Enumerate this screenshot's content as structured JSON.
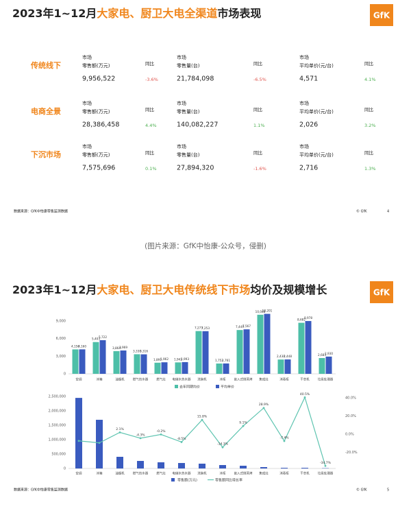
{
  "slide1": {
    "title": {
      "lead": "2023年1~12月",
      "highlight": "大家电、厨卫大电全渠道",
      "tail": "市场表现"
    },
    "logo": "GfK",
    "rows": [
      {
        "name": "传统线下",
        "metrics": [
          {
            "label": [
              "市场",
              "零售额(万元)"
            ],
            "value": "9,956,522",
            "yoy_label": "同比",
            "yoy": "-3.6%"
          },
          {
            "label": [
              "市场",
              "零售量(台)"
            ],
            "value": "21,784,098",
            "yoy_label": "同比",
            "yoy": "-6.5%"
          },
          {
            "label": [
              "市场",
              "平均单价(元/台)"
            ],
            "value": "4,571",
            "yoy_label": "同比",
            "yoy": "4.1%"
          }
        ]
      },
      {
        "name": "电商全景",
        "metrics": [
          {
            "label": [
              "市场",
              "零售额(万元)"
            ],
            "value": "28,386,458",
            "yoy_label": "同比",
            "yoy": "4.4%"
          },
          {
            "label": [
              "市场",
              "零售量(台)"
            ],
            "value": "140,082,227",
            "yoy_label": "同比",
            "yoy": "1.1%"
          },
          {
            "label": [
              "市场",
              "平均单价(元/台)"
            ],
            "value": "2,026",
            "yoy_label": "同比",
            "yoy": "3.2%"
          }
        ]
      },
      {
        "name": "下沉市场",
        "metrics": [
          {
            "label": [
              "市场",
              "零售额(万元)"
            ],
            "value": "7,575,696",
            "yoy_label": "同比",
            "yoy": "0.1%"
          },
          {
            "label": [
              "市场",
              "零售量(台)"
            ],
            "value": "27,894,320",
            "yoy_label": "同比",
            "yoy": "-1.6%"
          },
          {
            "label": [
              "市场",
              "平均单价(元/台)"
            ],
            "value": "2,716",
            "yoy_label": "同比",
            "yoy": "1.3%"
          }
        ]
      }
    ],
    "source": "数据来源：GfK中怡康零售监测数据",
    "copyright": "© GfK",
    "page": "4"
  },
  "caption": "(图片来源：GfK中怡康-公众号，侵删)",
  "slide2": {
    "title": {
      "lead": "2023年1~12月",
      "highlight": "大家电、厨卫大电传统线下市场",
      "tail": "均价及规模增长"
    },
    "logo": "GfK",
    "source": "数据来源：GfK中怡康零售监测数据",
    "copyright": "© GfK",
    "page": "5"
  },
  "chart_data": [
    {
      "type": "bar",
      "categories": [
        "空调",
        "冰箱",
        "油烟机",
        "燃气热水器",
        "燃气灶",
        "电储水热水器",
        "洗碗机",
        "冰柜",
        "嵌入式微蒸烤",
        "集成灶",
        "消毒柜",
        "干衣机",
        "垃圾处理器"
      ],
      "series": [
        {
          "name": "去年同期均价",
          "color": "#4dbfa8",
          "values": [
            4150,
            5403,
            3864,
            3330,
            1891,
            1942,
            7273,
            1752,
            7449,
            10048,
            2430,
            8682,
            2683
          ],
          "value_labels": [
            "4,150",
            "5,403",
            "3,864",
            "3,330",
            "1,891",
            "1,942",
            "7,273",
            "1,752",
            "7,449",
            "10,048",
            "2,430",
            "8,682",
            "2,683"
          ]
        },
        {
          "name": "平均单价",
          "color": "#3a5bbf",
          "values": [
            4160,
            5722,
            3969,
            3316,
            1962,
            1993,
            7253,
            1761,
            7567,
            10201,
            2448,
            8978,
            2930
          ],
          "value_labels": [
            "4,160",
            "5,722",
            "3,969",
            "3,316",
            "1,962",
            "1,993",
            "7,253",
            "1,761",
            "7,567",
            "10,201",
            "2,448",
            "8,978",
            "2,930"
          ]
        }
      ],
      "ylim": [
        0,
        10500
      ],
      "yticks": [
        0,
        {
          "value": 3000,
          "label": "3,000"
        },
        {
          "value": 6000,
          "label": "6,000"
        },
        {
          "value": 9000,
          "label": "9,000"
        }
      ]
    },
    {
      "type": "combo",
      "categories": [
        "空调",
        "冰箱",
        "油烟机",
        "燃气热水器",
        "燃气灶",
        "电储水热水器",
        "洗碗机",
        "冰柜",
        "嵌入式微蒸烤",
        "集成灶",
        "消毒柜",
        "干衣机",
        "垃圾处理器"
      ],
      "series": [
        {
          "name": "零售额(万元)",
          "type": "bar",
          "color": "#3a5bbf",
          "values": [
            2450000,
            1690000,
            405000,
            262000,
            214000,
            190000,
            167000,
            119000,
            95000,
            48000,
            24000,
            24000,
            10000
          ]
        },
        {
          "name": "零售额同比增长率",
          "type": "line",
          "axis": "y2",
          "color": "#5ec4b0",
          "values": [
            -7.2,
            -9.4,
            2.1,
            -4.3,
            -0.2,
            -8.5,
            15.8,
            -14.3,
            9.1,
            28.9,
            -7.4,
            40.5,
            -34.7
          ],
          "value_labels": [
            null,
            null,
            "2.1%",
            "-4.3%",
            "-0.2%",
            "-8.5%",
            "15.8%",
            "-14.3%",
            "9.1%",
            "28.9%",
            "-7.4%",
            "40.5%",
            "-34.7%"
          ]
        }
      ],
      "ylim": [
        0,
        2500000
      ],
      "yticks": [
        0,
        {
          "value": 500000,
          "label": "500,000"
        },
        {
          "value": 1000000,
          "label": "1,000,000"
        },
        {
          "value": 1500000,
          "label": "1,500,000"
        },
        {
          "value": 2000000,
          "label": "2,000,000"
        },
        {
          "value": 2500000,
          "label": "2,500,000"
        }
      ],
      "y2lim": [
        -37.5,
        41.5
      ],
      "y2ticks": [
        {
          "value": 40,
          "label": "40.0%"
        },
        {
          "value": 20,
          "label": "20.0%"
        },
        {
          "value": 0,
          "label": "0.0%"
        },
        {
          "value": -20,
          "label": "-20.0%"
        }
      ]
    }
  ]
}
